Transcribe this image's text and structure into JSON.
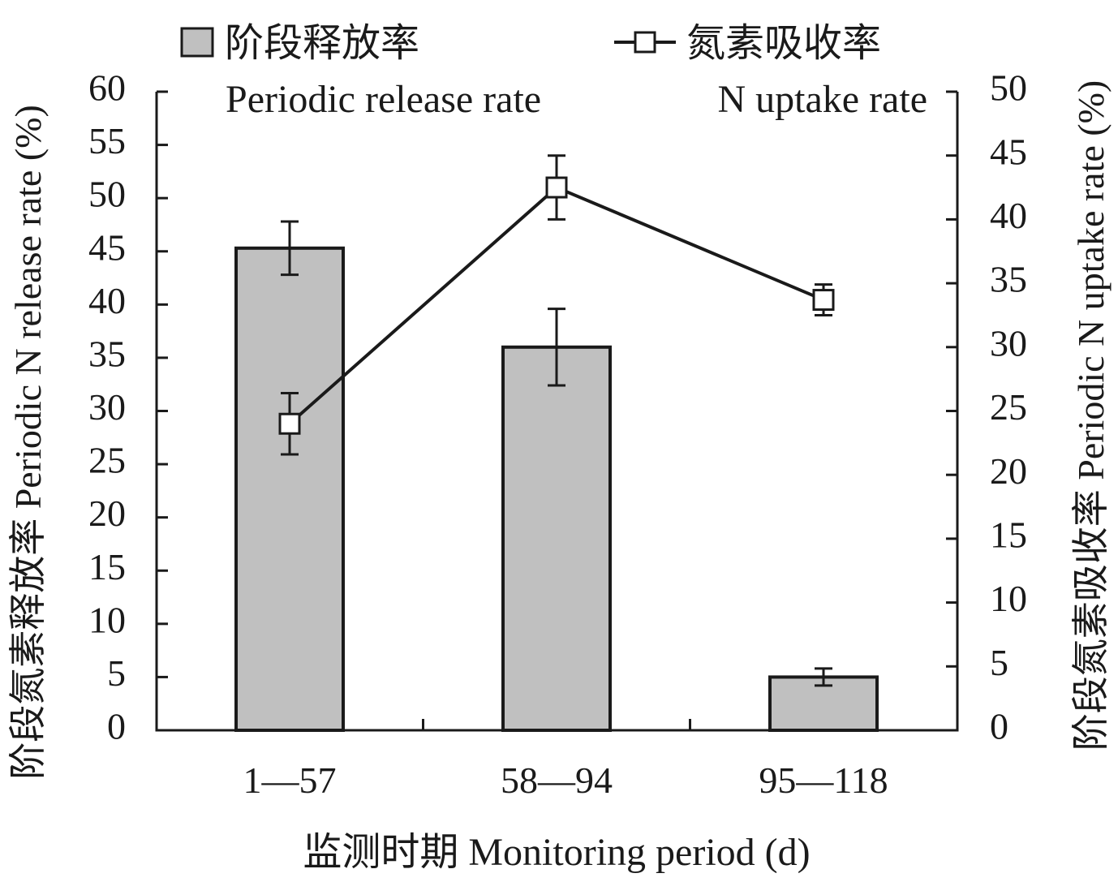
{
  "chart_data": {
    "type": "bar",
    "categories": [
      "1—57",
      "58—94",
      "95—118"
    ],
    "xlabel": "监测时期 Monitoring period (d)",
    "ylabel": "阶段氮素释放率 Periodic N release rate (%)",
    "y2label": "阶段氮素吸收率 Periodic N uptake rate (%)",
    "ylim": [
      0,
      60
    ],
    "y2lim": [
      0,
      50
    ],
    "yticks": [
      0,
      5,
      10,
      15,
      20,
      25,
      30,
      35,
      40,
      45,
      50,
      55,
      60
    ],
    "y2ticks": [
      0,
      5,
      10,
      15,
      20,
      25,
      30,
      35,
      40,
      45,
      50
    ],
    "grid": false,
    "legend_position": "top",
    "series": [
      {
        "name": "阶段释放率",
        "name_en": "Periodic release rate",
        "type": "bar",
        "axis": "left",
        "values": [
          45.3,
          36.0,
          5.0
        ],
        "errors": [
          2.5,
          3.6,
          0.8
        ],
        "color": "#c0c0c0"
      },
      {
        "name": "氮素吸收率",
        "name_en": "N uptake rate",
        "type": "line",
        "axis": "right",
        "marker": "open-square",
        "values": [
          24.0,
          42.5,
          33.7
        ],
        "errors": [
          2.4,
          2.5,
          1.2
        ],
        "color": "#1a1a1a"
      }
    ]
  }
}
